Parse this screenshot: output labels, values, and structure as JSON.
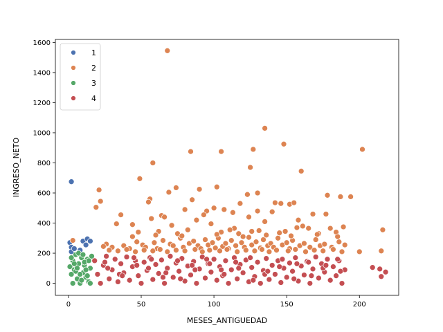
{
  "chart_data": {
    "type": "scatter",
    "xlabel": "MESES_ANTIGUEDAD",
    "ylabel": "INGRESO_NETO",
    "xlim": [
      -9,
      227
    ],
    "ylim": [
      -80,
      1620
    ],
    "xticks": [
      0,
      50,
      100,
      150,
      200
    ],
    "yticks": [
      0,
      200,
      400,
      600,
      800,
      1000,
      1200,
      1400,
      1600
    ],
    "grid": false,
    "legend": "top-left",
    "series": [
      {
        "name": "1",
        "color": "#4c72b0",
        "points": [
          [
            2,
            675
          ],
          [
            1,
            270
          ],
          [
            2,
            240
          ],
          [
            2,
            210
          ],
          [
            4,
            230
          ],
          [
            10,
            280
          ],
          [
            13,
            295
          ],
          [
            15,
            280
          ],
          [
            8,
            220
          ],
          [
            12,
            255
          ]
        ]
      },
      {
        "name": "2",
        "color": "#dd8452",
        "points": [
          [
            68,
            1545
          ],
          [
            135,
            1030
          ],
          [
            148,
            925
          ],
          [
            202,
            890
          ],
          [
            127,
            890
          ],
          [
            84,
            875
          ],
          [
            105,
            875
          ],
          [
            58,
            800
          ],
          [
            160,
            745
          ],
          [
            125,
            770
          ],
          [
            49,
            695
          ],
          [
            102,
            640
          ],
          [
            74,
            635
          ],
          [
            69,
            605
          ],
          [
            90,
            625
          ],
          [
            130,
            600
          ],
          [
            123,
            590
          ],
          [
            178,
            585
          ],
          [
            21,
            620
          ],
          [
            187,
            575
          ],
          [
            194,
            575
          ],
          [
            56,
            560
          ],
          [
            85,
            555
          ],
          [
            152,
            525
          ],
          [
            155,
            535
          ],
          [
            22,
            545
          ],
          [
            19,
            505
          ],
          [
            55,
            540
          ],
          [
            118,
            530
          ],
          [
            142,
            535
          ],
          [
            146,
            530
          ],
          [
            100,
            500
          ],
          [
            95,
            480
          ],
          [
            107,
            490
          ],
          [
            130,
            480
          ],
          [
            80,
            490
          ],
          [
            64,
            450
          ],
          [
            93,
            455
          ],
          [
            113,
            470
          ],
          [
            140,
            475
          ],
          [
            168,
            460
          ],
          [
            177,
            460
          ],
          [
            124,
            440
          ],
          [
            36,
            455
          ],
          [
            57,
            430
          ],
          [
            66,
            440
          ],
          [
            88,
            420
          ],
          [
            135,
            410
          ],
          [
            158,
            420
          ],
          [
            44,
            390
          ],
          [
            71,
            385
          ],
          [
            98,
            395
          ],
          [
            114,
            365
          ],
          [
            165,
            365
          ],
          [
            189,
            375
          ],
          [
            216,
            355
          ],
          [
            33,
            395
          ],
          [
            48,
            340
          ],
          [
            62,
            345
          ],
          [
            75,
            330
          ],
          [
            82,
            355
          ],
          [
            105,
            340
          ],
          [
            117,
            330
          ],
          [
            131,
            350
          ],
          [
            149,
            345
          ],
          [
            157,
            370
          ],
          [
            172,
            330
          ],
          [
            184,
            340
          ],
          [
            200,
            210
          ],
          [
            215,
            215
          ],
          [
            3,
            285
          ],
          [
            26,
            260
          ],
          [
            30,
            240
          ],
          [
            38,
            250
          ],
          [
            42,
            230
          ],
          [
            47,
            275
          ],
          [
            51,
            255
          ],
          [
            53,
            240
          ],
          [
            59,
            270
          ],
          [
            61,
            230
          ],
          [
            65,
            285
          ],
          [
            70,
            260
          ],
          [
            72,
            250
          ],
          [
            77,
            300
          ],
          [
            79,
            240
          ],
          [
            83,
            265
          ],
          [
            86,
            280
          ],
          [
            89,
            250
          ],
          [
            91,
            230
          ],
          [
            94,
            290
          ],
          [
            96,
            255
          ],
          [
            99,
            270
          ],
          [
            101,
            235
          ],
          [
            103,
            300
          ],
          [
            106,
            245
          ],
          [
            108,
            265
          ],
          [
            110,
            230
          ],
          [
            112,
            285
          ],
          [
            115,
            250
          ],
          [
            119,
            270
          ],
          [
            121,
            240
          ],
          [
            124,
            305
          ],
          [
            126,
            255
          ],
          [
            129,
            275
          ],
          [
            132,
            235
          ],
          [
            134,
            290
          ],
          [
            137,
            250
          ],
          [
            139,
            265
          ],
          [
            141,
            240
          ],
          [
            144,
            300
          ],
          [
            147,
            255
          ],
          [
            150,
            270
          ],
          [
            152,
            230
          ],
          [
            154,
            285
          ],
          [
            159,
            250
          ],
          [
            162,
            265
          ],
          [
            166,
            240
          ],
          [
            170,
            290
          ],
          [
            173,
            250
          ],
          [
            176,
            260
          ],
          [
            181,
            240
          ],
          [
            186,
            275
          ],
          [
            190,
            255
          ],
          [
            28,
            220
          ],
          [
            34,
            215
          ],
          [
            40,
            225
          ],
          [
            46,
            210
          ],
          [
            52,
            220
          ],
          [
            58,
            215
          ],
          [
            63,
            225
          ],
          [
            68,
            210
          ],
          [
            74,
            220
          ],
          [
            80,
            215
          ],
          [
            87,
            225
          ],
          [
            92,
            210
          ],
          [
            97,
            220
          ],
          [
            104,
            215
          ],
          [
            109,
            225
          ],
          [
            116,
            210
          ],
          [
            122,
            220
          ],
          [
            128,
            215
          ],
          [
            133,
            225
          ],
          [
            138,
            210
          ],
          [
            143,
            220
          ],
          [
            151,
            215
          ],
          [
            156,
            225
          ],
          [
            163,
            210
          ],
          [
            169,
            220
          ],
          [
            175,
            215
          ],
          [
            182,
            225
          ],
          [
            188,
            210
          ],
          [
            24,
            245
          ],
          [
            44,
            310
          ],
          [
            60,
            320
          ],
          [
            78,
            315
          ],
          [
            102,
            325
          ],
          [
            120,
            310
          ],
          [
            136,
            320
          ],
          [
            153,
            315
          ],
          [
            171,
            325
          ],
          [
            185,
            310
          ],
          [
            111,
            355
          ],
          [
            126,
            345
          ],
          [
            145,
            335
          ],
          [
            161,
            380
          ],
          [
            180,
            365
          ]
        ]
      },
      {
        "name": "3",
        "color": "#55a868",
        "points": [
          [
            1,
            110
          ],
          [
            2,
            60
          ],
          [
            3,
            150
          ],
          [
            4,
            90
          ],
          [
            5,
            190
          ],
          [
            6,
            30
          ],
          [
            7,
            130
          ],
          [
            8,
            0
          ],
          [
            9,
            170
          ],
          [
            10,
            70
          ],
          [
            11,
            120
          ],
          [
            12,
            40
          ],
          [
            13,
            160
          ],
          [
            14,
            10
          ],
          [
            15,
            100
          ],
          [
            16,
            180
          ],
          [
            3,
            0
          ],
          [
            5,
            80
          ],
          [
            7,
            200
          ],
          [
            9,
            20
          ],
          [
            11,
            140
          ],
          [
            13,
            50
          ],
          [
            15,
            0
          ],
          [
            2,
            170
          ],
          [
            4,
            130
          ],
          [
            6,
            100
          ],
          [
            8,
            60
          ],
          [
            10,
            190
          ],
          [
            12,
            90
          ],
          [
            14,
            150
          ]
        ]
      },
      {
        "name": "4",
        "color": "#c44e52",
        "points": [
          [
            18,
            150
          ],
          [
            20,
            60
          ],
          [
            22,
            0
          ],
          [
            24,
            120
          ],
          [
            26,
            180
          ],
          [
            28,
            30
          ],
          [
            30,
            90
          ],
          [
            32,
            160
          ],
          [
            34,
            10
          ],
          [
            36,
            130
          ],
          [
            38,
            70
          ],
          [
            40,
            175
          ],
          [
            42,
            20
          ],
          [
            44,
            110
          ],
          [
            46,
            150
          ],
          [
            48,
            50
          ],
          [
            50,
            0
          ],
          [
            52,
            140
          ],
          [
            54,
            85
          ],
          [
            56,
            170
          ],
          [
            58,
            25
          ],
          [
            60,
            125
          ],
          [
            62,
            65
          ],
          [
            64,
            155
          ],
          [
            66,
            0
          ],
          [
            68,
            100
          ],
          [
            70,
            180
          ],
          [
            72,
            40
          ],
          [
            74,
            135
          ],
          [
            76,
            80
          ],
          [
            78,
            165
          ],
          [
            80,
            15
          ],
          [
            82,
            115
          ],
          [
            84,
            55
          ],
          [
            86,
            145
          ],
          [
            88,
            0
          ],
          [
            90,
            95
          ],
          [
            92,
            175
          ],
          [
            94,
            35
          ],
          [
            96,
            130
          ],
          [
            98,
            75
          ],
          [
            100,
            160
          ],
          [
            102,
            20
          ],
          [
            104,
            110
          ],
          [
            106,
            50
          ],
          [
            108,
            150
          ],
          [
            110,
            0
          ],
          [
            112,
            90
          ],
          [
            114,
            170
          ],
          [
            116,
            30
          ],
          [
            118,
            125
          ],
          [
            120,
            70
          ],
          [
            122,
            155
          ],
          [
            124,
            10
          ],
          [
            126,
            105
          ],
          [
            128,
            45
          ],
          [
            130,
            140
          ],
          [
            132,
            0
          ],
          [
            134,
            85
          ],
          [
            136,
            165
          ],
          [
            138,
            25
          ],
          [
            140,
            120
          ],
          [
            142,
            60
          ],
          [
            144,
            150
          ],
          [
            146,
            5
          ],
          [
            148,
            100
          ],
          [
            150,
            40
          ],
          [
            152,
            135
          ],
          [
            154,
            80
          ],
          [
            156,
            170
          ],
          [
            158,
            15
          ],
          [
            160,
            115
          ],
          [
            162,
            55
          ],
          [
            164,
            145
          ],
          [
            166,
            0
          ],
          [
            168,
            95
          ],
          [
            170,
            175
          ],
          [
            172,
            35
          ],
          [
            174,
            130
          ],
          [
            176,
            75
          ],
          [
            178,
            160
          ],
          [
            180,
            20
          ],
          [
            182,
            110
          ],
          [
            184,
            50
          ],
          [
            186,
            150
          ],
          [
            188,
            0
          ],
          [
            190,
            90
          ],
          [
            209,
            105
          ],
          [
            214,
            95
          ],
          [
            215,
            45
          ],
          [
            218,
            75
          ],
          [
            25,
            140
          ],
          [
            35,
            60
          ],
          [
            45,
            170
          ],
          [
            55,
            100
          ],
          [
            65,
            40
          ],
          [
            75,
            150
          ],
          [
            85,
            120
          ],
          [
            95,
            160
          ],
          [
            105,
            90
          ],
          [
            115,
            140
          ],
          [
            125,
            170
          ],
          [
            135,
            60
          ],
          [
            145,
            110
          ],
          [
            155,
            30
          ],
          [
            165,
            140
          ],
          [
            175,
            100
          ],
          [
            185,
            160
          ],
          [
            27,
            100
          ],
          [
            37,
            50
          ],
          [
            47,
            120
          ],
          [
            57,
            160
          ],
          [
            67,
            70
          ],
          [
            77,
            30
          ],
          [
            87,
            90
          ],
          [
            97,
            130
          ],
          [
            107,
            60
          ],
          [
            117,
            100
          ],
          [
            127,
            20
          ],
          [
            137,
            80
          ],
          [
            147,
            160
          ],
          [
            157,
            130
          ],
          [
            167,
            50
          ],
          [
            177,
            120
          ],
          [
            187,
            80
          ]
        ]
      }
    ]
  }
}
